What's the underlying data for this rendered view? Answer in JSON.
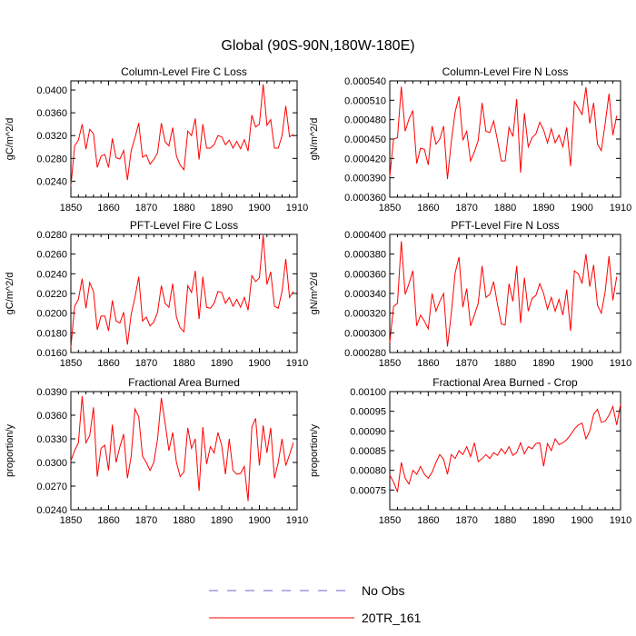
{
  "title": "Global (90S-90N,180W-180E)",
  "legend": {
    "items": [
      {
        "label": "No Obs",
        "color": "#6666cc",
        "style": "dashed"
      },
      {
        "label": "20TR_161",
        "color": "#ff0000",
        "style": "solid"
      }
    ]
  },
  "chart_data": [
    {
      "type": "line",
      "title": "Column-Level Fire C Loss",
      "xlabel": "",
      "ylabel": "gC/m^2/d",
      "xlim": [
        1850,
        1910
      ],
      "ylim": [
        0.0212,
        0.0416
      ],
      "xticks": [
        1850,
        1860,
        1870,
        1880,
        1890,
        1900,
        1910
      ],
      "yticks": [
        0.024,
        0.028,
        0.032,
        0.036,
        0.04
      ],
      "ytick_labels": [
        "0.0240",
        "0.0280",
        "0.0320",
        "0.0360",
        "0.0400"
      ],
      "x_start": 1850,
      "series": [
        {
          "name": "20TR_161",
          "color": "#ff0000",
          "values": [
            0.0231,
            0.0302,
            0.0312,
            0.034,
            0.0296,
            0.0331,
            0.0323,
            0.0264,
            0.0284,
            0.0287,
            0.0264,
            0.0315,
            0.0281,
            0.0279,
            0.0294,
            0.0242,
            0.0294,
            0.0316,
            0.0342,
            0.0282,
            0.0286,
            0.027,
            0.0278,
            0.029,
            0.0342,
            0.0309,
            0.0302,
            0.0334,
            0.0284,
            0.0268,
            0.026,
            0.0328,
            0.032,
            0.035,
            0.0278,
            0.034,
            0.0298,
            0.0298,
            0.0304,
            0.032,
            0.0318,
            0.0304,
            0.0312,
            0.0298,
            0.031,
            0.0297,
            0.0313,
            0.0293,
            0.0356,
            0.0335,
            0.034,
            0.041,
            0.0338,
            0.0348,
            0.0298,
            0.0298,
            0.032,
            0.0372,
            0.0318,
            0.0322
          ]
        }
      ]
    },
    {
      "type": "line",
      "title": "Column-Level Fire N Loss",
      "xlabel": "",
      "ylabel": "gN/m^2/d",
      "xlim": [
        1850,
        1910
      ],
      "ylim": [
        0.00036,
        0.00054
      ],
      "xticks": [
        1850,
        1860,
        1870,
        1880,
        1890,
        1900,
        1910
      ],
      "yticks": [
        0.00036,
        0.00039,
        0.00042,
        0.00045,
        0.00048,
        0.00051,
        0.00054
      ],
      "ytick_labels": [
        "0.000360",
        "0.000390",
        "0.000420",
        "0.000450",
        "0.000480",
        "0.000510",
        "0.000540"
      ],
      "x_start": 1850,
      "series": [
        {
          "name": "20TR_161",
          "color": "#ff0000",
          "values": [
            0.000392,
            0.00045,
            0.000452,
            0.000531,
            0.000462,
            0.000481,
            0.000494,
            0.000412,
            0.000436,
            0.000434,
            0.00041,
            0.00047,
            0.000442,
            0.00045,
            0.00047,
            0.000388,
            0.000446,
            0.000492,
            0.000516,
            0.000448,
            0.000462,
            0.000416,
            0.00043,
            0.000448,
            0.000506,
            0.000462,
            0.00046,
            0.000478,
            0.000448,
            0.000416,
            0.000416,
            0.000468,
            0.000454,
            0.000512,
            0.000398,
            0.00049,
            0.000438,
            0.000452,
            0.000458,
            0.000476,
            0.000464,
            0.000444,
            0.000466,
            0.000444,
            0.000456,
            0.000438,
            0.000468,
            0.000408,
            0.000508,
            0.000498,
            0.000488,
            0.00053,
            0.000474,
            0.000506,
            0.000442,
            0.000432,
            0.000474,
            0.00052,
            0.000456,
            0.000486
          ]
        }
      ]
    },
    {
      "type": "line",
      "title": "PFT-Level Fire C Loss",
      "xlabel": "",
      "ylabel": "gC/m^2/d",
      "xlim": [
        1850,
        1910
      ],
      "ylim": [
        0.016,
        0.028
      ],
      "xticks": [
        1850,
        1860,
        1870,
        1880,
        1890,
        1900,
        1910
      ],
      "yticks": [
        0.016,
        0.018,
        0.02,
        0.022,
        0.024,
        0.026,
        0.028
      ],
      "ytick_labels": [
        "0.0160",
        "0.0180",
        "0.0200",
        "0.0220",
        "0.0240",
        "0.0260",
        "0.0280"
      ],
      "x_start": 1850,
      "series": [
        {
          "name": "20TR_161",
          "color": "#ff0000",
          "values": [
            0.0165,
            0.0207,
            0.0214,
            0.0235,
            0.0205,
            0.0231,
            0.0222,
            0.0183,
            0.0197,
            0.0197,
            0.0182,
            0.0213,
            0.0192,
            0.019,
            0.0201,
            0.0168,
            0.0199,
            0.0216,
            0.0237,
            0.0192,
            0.0196,
            0.0187,
            0.0191,
            0.0201,
            0.0228,
            0.021,
            0.0206,
            0.023,
            0.0196,
            0.0185,
            0.0181,
            0.0228,
            0.0221,
            0.0243,
            0.0194,
            0.0237,
            0.0206,
            0.0205,
            0.021,
            0.0222,
            0.0221,
            0.021,
            0.0216,
            0.0207,
            0.0214,
            0.0206,
            0.0216,
            0.0203,
            0.0238,
            0.0232,
            0.0236,
            0.0279,
            0.0229,
            0.0242,
            0.0207,
            0.0205,
            0.0222,
            0.0255,
            0.0216,
            0.0222
          ]
        }
      ]
    },
    {
      "type": "line",
      "title": "PFT-Level Fire N Loss",
      "xlabel": "",
      "ylabel": "gN/m^2/d",
      "xlim": [
        1850,
        1910
      ],
      "ylim": [
        0.00028,
        0.0004
      ],
      "xticks": [
        1850,
        1860,
        1870,
        1880,
        1890,
        1900,
        1910
      ],
      "yticks": [
        0.00028,
        0.0003,
        0.00032,
        0.00034,
        0.00036,
        0.00038,
        0.0004
      ],
      "ytick_labels": [
        "0.000280",
        "0.000300",
        "0.000320",
        "0.000340",
        "0.000360",
        "0.000380",
        "0.000400"
      ],
      "x_start": 1850,
      "series": [
        {
          "name": "20TR_161",
          "color": "#ff0000",
          "values": [
            0.00029,
            0.000327,
            0.00033,
            0.000393,
            0.000339,
            0.00035,
            0.000363,
            0.000307,
            0.000318,
            0.000312,
            0.000304,
            0.00034,
            0.000322,
            0.000332,
            0.00034,
            0.000286,
            0.00032,
            0.000361,
            0.000377,
            0.000326,
            0.000345,
            0.000307,
            0.000318,
            0.00033,
            0.000368,
            0.000336,
            0.000339,
            0.000352,
            0.000329,
            0.000309,
            0.000308,
            0.00035,
            0.000332,
            0.000368,
            0.00031,
            0.000356,
            0.000322,
            0.000335,
            0.000338,
            0.00035,
            0.00034,
            0.000324,
            0.000336,
            0.000322,
            0.000334,
            0.000318,
            0.000344,
            0.000302,
            0.000363,
            0.00036,
            0.00035,
            0.00038,
            0.000347,
            0.000369,
            0.000328,
            0.00032,
            0.000342,
            0.000378,
            0.000333,
            0.000357
          ]
        }
      ]
    },
    {
      "type": "line",
      "title": "Fractional Area Burned",
      "xlabel": "",
      "ylabel": "proportion/y",
      "xlim": [
        1850,
        1910
      ],
      "ylim": [
        0.024,
        0.039
      ],
      "xticks": [
        1850,
        1860,
        1870,
        1880,
        1890,
        1900,
        1910
      ],
      "yticks": [
        0.024,
        0.027,
        0.03,
        0.033,
        0.036,
        0.039
      ],
      "ytick_labels": [
        "0.0240",
        "0.0270",
        "0.0300",
        "0.0330",
        "0.0360",
        "0.0390"
      ],
      "x_start": 1850,
      "series": [
        {
          "name": "20TR_161",
          "color": "#ff0000",
          "values": [
            0.0302,
            0.0315,
            0.0325,
            0.0384,
            0.0325,
            0.0334,
            0.037,
            0.0282,
            0.0318,
            0.0322,
            0.029,
            0.0348,
            0.03,
            0.032,
            0.0336,
            0.028,
            0.0308,
            0.0368,
            0.0358,
            0.0308,
            0.03,
            0.029,
            0.03,
            0.033,
            0.0382,
            0.035,
            0.0315,
            0.0338,
            0.03,
            0.0282,
            0.0288,
            0.0344,
            0.0318,
            0.033,
            0.0264,
            0.0345,
            0.0298,
            0.032,
            0.0312,
            0.0338,
            0.0322,
            0.0285,
            0.033,
            0.029,
            0.0285,
            0.0286,
            0.0295,
            0.0251,
            0.0345,
            0.0356,
            0.0296,
            0.0347,
            0.0312,
            0.0344,
            0.028,
            0.03,
            0.033,
            0.0296,
            0.031,
            0.0325
          ]
        }
      ]
    },
    {
      "type": "line",
      "title": "Fractional Area Burned - Crop",
      "xlabel": "",
      "ylabel": "proportion/y",
      "xlim": [
        1850,
        1910
      ],
      "ylim": [
        0.0007,
        0.001
      ],
      "xticks": [
        1850,
        1860,
        1870,
        1880,
        1890,
        1900,
        1910
      ],
      "yticks": [
        0.00075,
        0.0008,
        0.00085,
        0.0009,
        0.00095,
        0.001
      ],
      "ytick_labels": [
        "0.00075",
        "0.00080",
        "0.00085",
        "0.00090",
        "0.00095",
        "0.00100"
      ],
      "x_start": 1850,
      "series": [
        {
          "name": "20TR_161",
          "color": "#ff0000",
          "values": [
            0.000788,
            0.00077,
            0.000745,
            0.00082,
            0.00078,
            0.000765,
            0.0008,
            0.00079,
            0.00081,
            0.00079,
            0.00078,
            0.000795,
            0.00082,
            0.00084,
            0.000828,
            0.00079,
            0.00084,
            0.00083,
            0.00085,
            0.00084,
            0.00086,
            0.000835,
            0.00087,
            0.000822,
            0.00083,
            0.00084,
            0.00083,
            0.000845,
            0.000838,
            0.000855,
            0.000842,
            0.00086,
            0.000838,
            0.000845,
            0.00087,
            0.000842,
            0.00086,
            0.000855,
            0.000868,
            0.00087,
            0.00081,
            0.000868,
            0.00085,
            0.00088,
            0.000865,
            0.00087,
            0.000878,
            0.00089,
            0.000905,
            0.000915,
            0.00092,
            0.00088,
            0.0009,
            0.000942,
            0.000955,
            0.000922,
            0.000925,
            0.00094,
            0.000962,
            0.000915,
            0.000968
          ]
        }
      ]
    }
  ]
}
